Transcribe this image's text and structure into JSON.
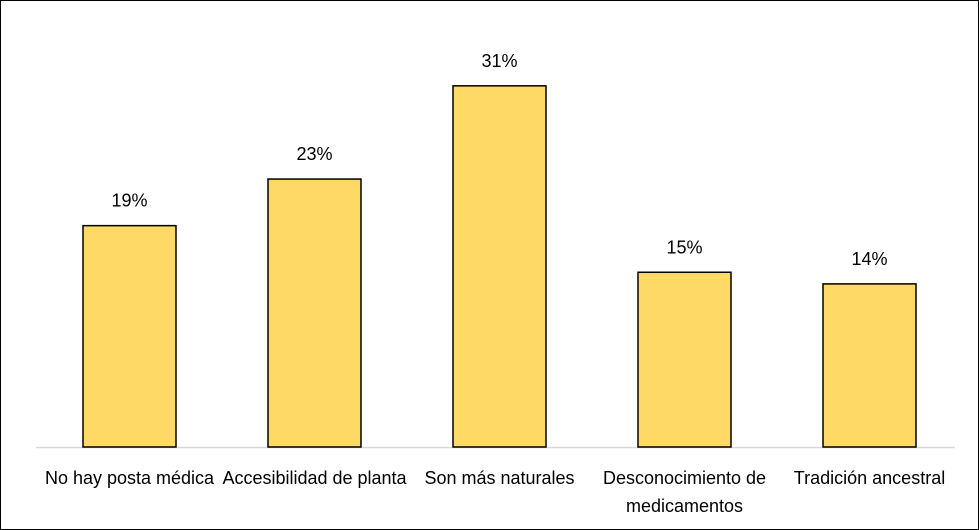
{
  "chart_data": {
    "type": "bar",
    "categories": [
      "No hay posta médica",
      "Accesibilidad de planta",
      "Son más naturales",
      "Desconocimiento de medicamentos",
      "Tradición ancestral"
    ],
    "values": [
      19,
      23,
      31,
      15,
      14
    ],
    "value_labels": [
      "19%",
      "23%",
      "31%",
      "15%",
      "14%"
    ],
    "color": "#FFD966"
  }
}
